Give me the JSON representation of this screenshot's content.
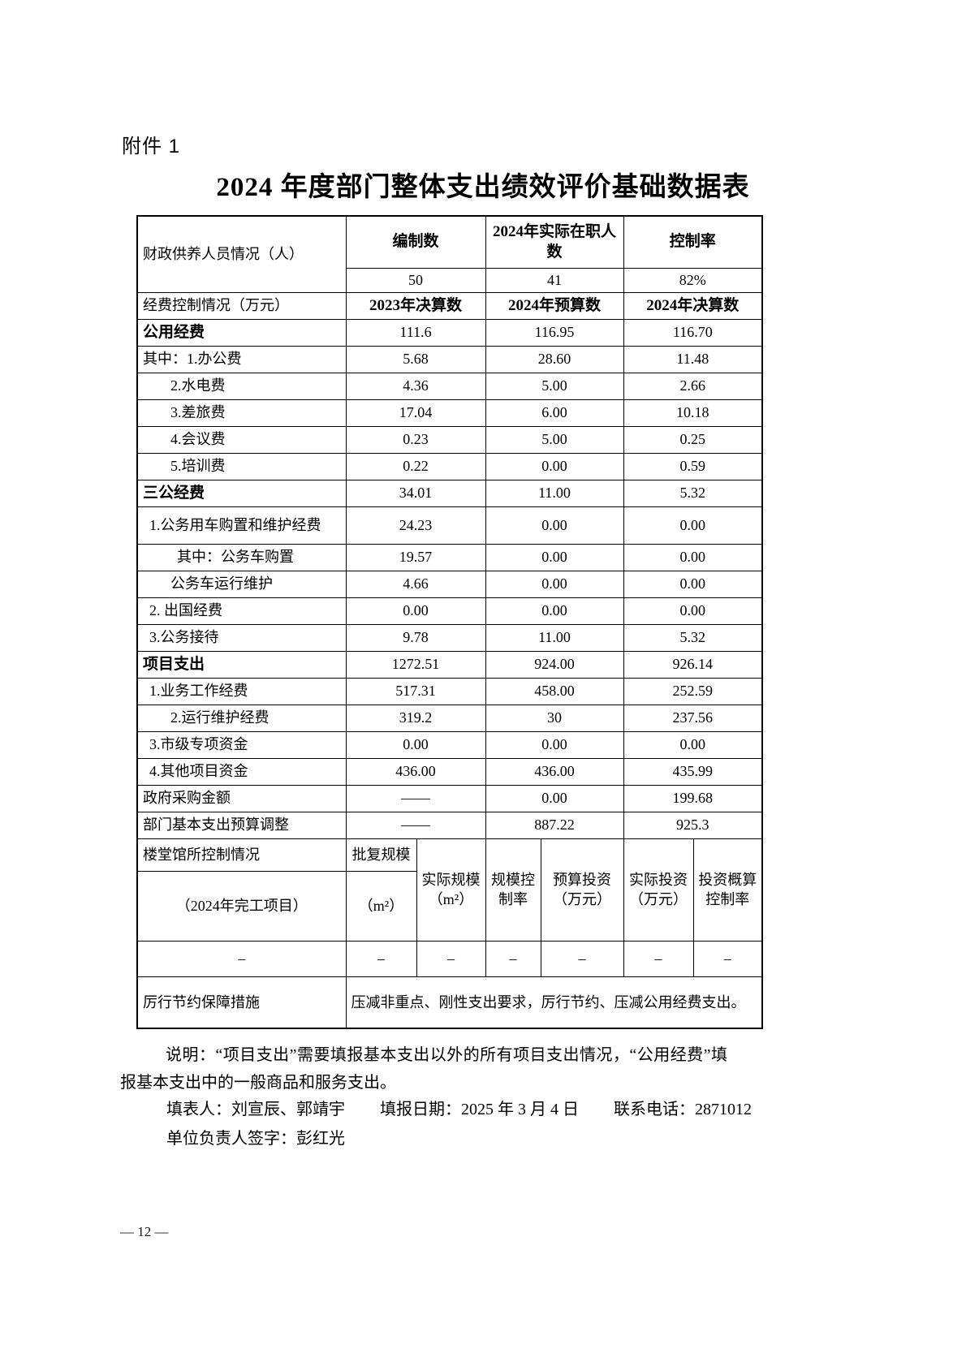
{
  "page": {
    "attachment_label": "附件 1",
    "title": "2024 年度部门整体支出绩效评价基础数据表",
    "footer_page_number": "— 12 —",
    "colors": {
      "ink": "#000000",
      "paper": "#ffffff"
    }
  },
  "table": {
    "personnel": {
      "label": "财政供养人员情况（人）",
      "headers": [
        "编制数",
        "2024年实际在职人数",
        "控制率"
      ],
      "values": [
        "50",
        "41",
        "82%"
      ]
    },
    "expense_header": {
      "label": "经费控制情况（万元）",
      "headers": [
        "2023年决算数",
        "2024年预算数",
        "2024年决算数"
      ]
    },
    "rows": [
      {
        "label": "公用经费",
        "bold": true,
        "indent": 0,
        "values": [
          "111.6",
          "116.95",
          "116.70"
        ]
      },
      {
        "label": "其中：1.办公费",
        "indent": 0,
        "values": [
          "5.68",
          "28.60",
          "11.48"
        ]
      },
      {
        "label": "2.水电费",
        "indent": 2,
        "values": [
          "4.36",
          "5.00",
          "2.66"
        ]
      },
      {
        "label": "3.差旅费",
        "indent": 2,
        "values": [
          "17.04",
          "6.00",
          "10.18"
        ]
      },
      {
        "label": "4.会议费",
        "indent": 2,
        "values": [
          "0.23",
          "5.00",
          "0.25"
        ]
      },
      {
        "label": "5.培训费",
        "indent": 2,
        "values": [
          "0.22",
          "0.00",
          "0.59"
        ]
      },
      {
        "label": "三公经费",
        "bold": true,
        "indent": 0,
        "values": [
          "34.01",
          "11.00",
          "5.32"
        ]
      },
      {
        "label": "1.公务用车购置和维护经费",
        "indent": 1,
        "tall": true,
        "values": [
          "24.23",
          "0.00",
          "0.00"
        ]
      },
      {
        "label": "其中：公务车购置",
        "indent": 3,
        "values": [
          "19.57",
          "0.00",
          "0.00"
        ]
      },
      {
        "label": "公务车运行维护",
        "indent": 2,
        "values": [
          "4.66",
          "0.00",
          "0.00"
        ]
      },
      {
        "label": "2. 出国经费",
        "indent": 1,
        "values": [
          "0.00",
          "0.00",
          "0.00"
        ]
      },
      {
        "label": "3.公务接待",
        "indent": 1,
        "values": [
          "9.78",
          "11.00",
          "5.32"
        ]
      },
      {
        "label": "项目支出",
        "bold": true,
        "indent": 0,
        "values": [
          "1272.51",
          "924.00",
          "926.14"
        ]
      },
      {
        "label": "1.业务工作经费",
        "indent": 1,
        "values": [
          "517.31",
          "458.00",
          "252.59"
        ]
      },
      {
        "label": "2.运行维护经费",
        "indent": 2,
        "values": [
          "319.2",
          "30",
          "237.56"
        ]
      },
      {
        "label": "3.市级专项资金",
        "indent": 1,
        "values": [
          "0.00",
          "0.00",
          "0.00"
        ]
      },
      {
        "label": "4.其他项目资金",
        "indent": 1,
        "values": [
          "436.00",
          "436.00",
          "435.99"
        ]
      },
      {
        "label": "政府采购金额",
        "indent": 0,
        "values": [
          "——",
          "0.00",
          "199.68"
        ]
      },
      {
        "label": "部门基本支出预算调整",
        "indent": 0,
        "values": [
          "——",
          "887.22",
          "925.3"
        ]
      }
    ],
    "building_control": {
      "label": "楼堂馆所控制情况",
      "sublabel": "（2024年完工项目）",
      "col1_header": "批复规模",
      "col1_unit": "（m²）",
      "headers": [
        "实际规模（m²）",
        "规模控制率",
        "预算投资（万元）",
        "实际投资（万元）",
        "投资概算控制率"
      ],
      "dash_row": [
        "–",
        "–",
        "–",
        "–",
        "–",
        "–",
        "–"
      ]
    },
    "thrift": {
      "label": "厉行节约保障措施",
      "value": "压减非重点、刚性支出要求，厉行节约、压减公用经费支出。"
    }
  },
  "notes": {
    "description": "说明：“项目支出”需要填报基本支出以外的所有项目支出情况，“公用经费”填报基本支出中的一般商品和服务支出。",
    "filler": "填表人：刘宣辰、郭靖宇",
    "report_date": "填报日期：2025 年 3 月 4 日",
    "phone": "联系电话：2871012",
    "signature": "单位负责人签字：彭红光"
  }
}
